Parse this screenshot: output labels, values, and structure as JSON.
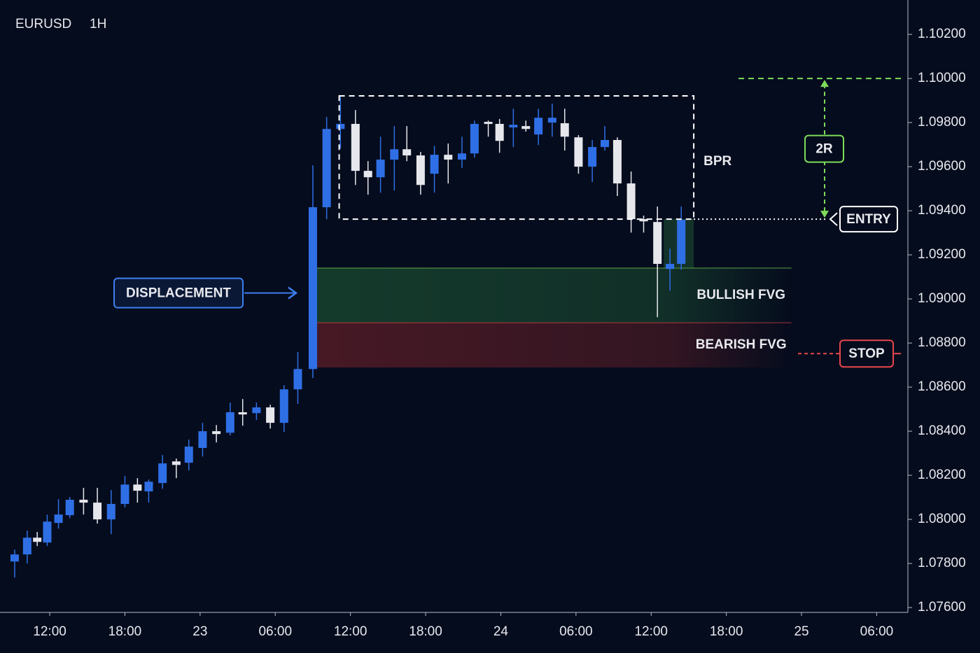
{
  "chart_data": {
    "type": "candlestick",
    "title": "EURUSD",
    "subtitle": "1H",
    "up_color": "#2f6fe6",
    "down_color": "#e6e7ec",
    "x": [
      9.2,
      10.2,
      11.0,
      11.8,
      12.7,
      13.6,
      14.7,
      15.8,
      16.9,
      18.0,
      19.0,
      19.9,
      21.0,
      22.1,
      23.1,
      24.2,
      25.3,
      26.4,
      27.4,
      28.5,
      29.6,
      30.7,
      31.8,
      33.0,
      34.1,
      35.2,
      36.4,
      37.4,
      38.4,
      39.5,
      40.5,
      41.6,
      42.7,
      43.8,
      44.9,
      45.9,
      47.0,
      47.9,
      49.0,
      50.0,
      51.0,
      52.1,
      53.1,
      54.2,
      55.3,
      56.3,
      57.3,
      58.4,
      59.4,
      60.5,
      61.5,
      62.4
    ],
    "open": [
      1.07809,
      1.07841,
      1.07917,
      1.07895,
      1.07984,
      1.08019,
      1.08089,
      1.08076,
      1.08,
      1.0807,
      1.08158,
      1.08127,
      1.08165,
      1.08263,
      1.08257,
      1.08324,
      1.084,
      1.08393,
      1.08486,
      1.08482,
      1.08508,
      1.08438,
      1.0859,
      1.08682,
      1.09416,
      1.09771,
      1.09794,
      1.09581,
      1.09552,
      1.09632,
      1.09679,
      1.09651,
      1.09568,
      1.09654,
      1.09632,
      1.0966,
      1.09803,
      1.09794,
      1.09778,
      1.09784,
      1.09746,
      1.098,
      1.09797,
      1.09733,
      1.096,
      1.09689,
      1.09721,
      1.09524,
      1.09362,
      1.09349,
      1.09136,
      1.09159
    ],
    "high": [
      1.07863,
      1.07949,
      1.07943,
      1.08022,
      1.08092,
      1.08101,
      1.08143,
      1.08143,
      1.08133,
      1.08197,
      1.08187,
      1.08181,
      1.08292,
      1.08276,
      1.08362,
      1.08438,
      1.08428,
      1.0853,
      1.08546,
      1.0853,
      1.0852,
      1.08609,
      1.08759,
      1.09606,
      1.09825,
      1.09917,
      1.09857,
      1.09625,
      1.09736,
      1.09784,
      1.09784,
      1.09667,
      1.09695,
      1.09705,
      1.09736,
      1.09809,
      1.09809,
      1.09816,
      1.09863,
      1.09809,
      1.09863,
      1.09886,
      1.09863,
      1.09743,
      1.09721,
      1.09784,
      1.09733,
      1.09578,
      1.09378,
      1.09419,
      1.09228,
      1.09419
    ],
    "low": [
      1.07736,
      1.078,
      1.07879,
      1.07879,
      1.07958,
      1.08006,
      1.08022,
      1.07981,
      1.07933,
      1.08054,
      1.08076,
      1.08076,
      1.08139,
      1.08187,
      1.08222,
      1.08285,
      1.08349,
      1.08381,
      1.08425,
      1.08451,
      1.08412,
      1.08397,
      1.08524,
      1.08641,
      1.09362,
      1.09682,
      1.09517,
      1.09473,
      1.09482,
      1.09492,
      1.09625,
      1.09473,
      1.09482,
      1.09524,
      1.09594,
      1.09641,
      1.09736,
      1.09663,
      1.09689,
      1.09759,
      1.09698,
      1.09736,
      1.09673,
      1.09568,
      1.0953,
      1.09673,
      1.09467,
      1.09301,
      1.09301,
      1.08917,
      1.09038,
      1.09133
    ],
    "close": [
      1.07841,
      1.07917,
      1.07898,
      1.0799,
      1.08022,
      1.08089,
      1.08076,
      1.08,
      1.0807,
      1.08158,
      1.0813,
      1.08171,
      1.08254,
      1.08247,
      1.0833,
      1.084,
      1.08387,
      1.08486,
      1.08476,
      1.08508,
      1.08438,
      1.0859,
      1.08682,
      1.09416,
      1.09771,
      1.09794,
      1.09581,
      1.09552,
      1.09632,
      1.09679,
      1.09651,
      1.09517,
      1.09654,
      1.09632,
      1.0966,
      1.09794,
      1.09794,
      1.09717,
      1.0979,
      1.09771,
      1.09822,
      1.09822,
      1.09736,
      1.096,
      1.09689,
      1.09721,
      1.09524,
      1.09362,
      1.09352,
      1.09159,
      1.09159,
      1.09359
    ],
    "xlim": [
      8.03,
      80.49
    ],
    "xticks": [
      {
        "value": 12,
        "label": "12:00"
      },
      {
        "value": 18,
        "label": "18:00"
      },
      {
        "value": 24,
        "label": "23"
      },
      {
        "value": 30,
        "label": "06:00"
      },
      {
        "value": 36,
        "label": "12:00"
      },
      {
        "value": 42,
        "label": "18:00"
      },
      {
        "value": 48,
        "label": "24"
      },
      {
        "value": 54,
        "label": "06:00"
      },
      {
        "value": 60,
        "label": "12:00"
      },
      {
        "value": 66,
        "label": "18:00"
      },
      {
        "value": 72,
        "label": "25"
      },
      {
        "value": 78,
        "label": "06:00"
      }
    ],
    "ylim": [
      1.07578,
      1.10356
    ],
    "yticks": [
      {
        "value": 1.076,
        "label": "1.07600"
      },
      {
        "value": 1.078,
        "label": "1.07800"
      },
      {
        "value": 1.08,
        "label": "1.08000"
      },
      {
        "value": 1.082,
        "label": "1.08200"
      },
      {
        "value": 1.084,
        "label": "1.08400"
      },
      {
        "value": 1.086,
        "label": "1.08600"
      },
      {
        "value": 1.088,
        "label": "1.08800"
      },
      {
        "value": 1.09,
        "label": "1.09000"
      },
      {
        "value": 1.092,
        "label": "1.09200"
      },
      {
        "value": 1.094,
        "label": "1.09400"
      },
      {
        "value": 1.096,
        "label": "1.09600"
      },
      {
        "value": 1.098,
        "label": "1.09800"
      },
      {
        "value": 1.1,
        "label": "1.10000"
      },
      {
        "value": 1.102,
        "label": "1.10200"
      }
    ],
    "annotations": {
      "bpr": {
        "label": "BPR",
        "x": [
          35.1,
          63.4
        ],
        "y": [
          1.09362,
          1.09921
        ],
        "color": "#ffffff"
      },
      "bullish_fvg": {
        "label": "BULLISH FVG",
        "x": [
          33.3,
          71.2
        ],
        "y": [
          1.08892,
          1.0914
        ],
        "color": "#7ddc5a"
      },
      "bearish_fvg": {
        "label": "BEARISH FVG",
        "x": [
          33.3,
          71.2
        ],
        "y": [
          1.08689,
          1.08892
        ],
        "color": "#e8474c"
      },
      "entry_zone": {
        "x": [
          61.0,
          63.4
        ],
        "y": [
          1.0914,
          1.09362
        ],
        "color": "#2e7d46"
      },
      "displacement": {
        "label": "DISPLACEMENT",
        "x": 33.0,
        "color": "#3d7ff0"
      },
      "entry": {
        "label": "ENTRY",
        "value": 1.09362,
        "color": "#ffffff"
      },
      "target": {
        "label": "2R",
        "value": 1.1,
        "color": "#7ddc5a"
      },
      "stop": {
        "label": "STOP",
        "value": 1.08752,
        "color": "#e8474c"
      }
    }
  }
}
